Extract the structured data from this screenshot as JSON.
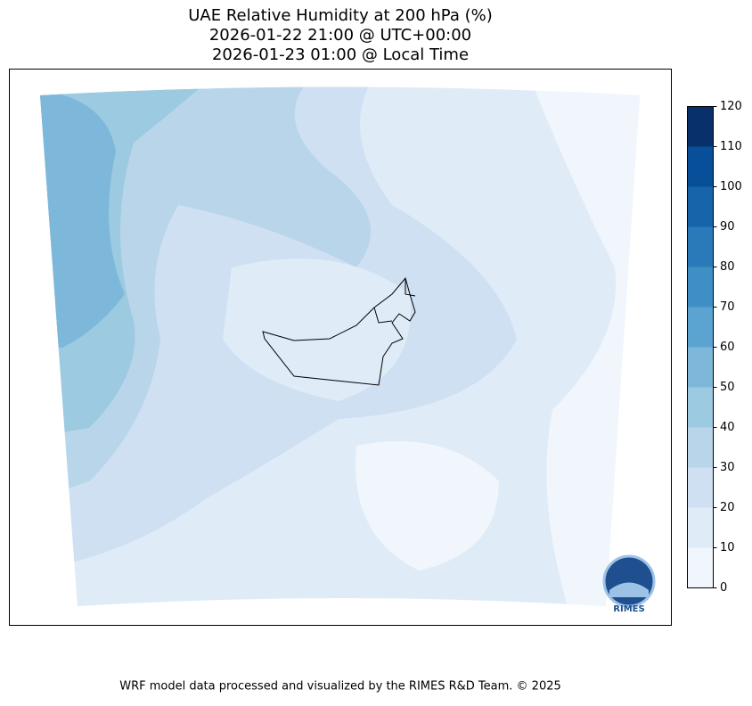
{
  "title_lines": [
    "UAE Relative Humidity at 200 hPa (%)",
    "2026-01-22 21:00 @ UTC+00:00",
    "2026-01-23 01:00 @ Local Time"
  ],
  "colorbar": {
    "ticks": [
      0,
      10,
      20,
      30,
      40,
      50,
      60,
      70,
      80,
      90,
      100,
      110,
      120
    ],
    "colors": [
      "#f0f6fc",
      "#dfebf7",
      "#cfe0f2",
      "#b9d5ea",
      "#9ccae1",
      "#7db8da",
      "#5ba3d0",
      "#3f8fc5",
      "#2a7aba",
      "#1764ab",
      "#084f99",
      "#08306b"
    ]
  },
  "logo_text": "RIMES",
  "footer": "WRF model data processed and visualized by the RIMES R&D Team. © 2025"
}
